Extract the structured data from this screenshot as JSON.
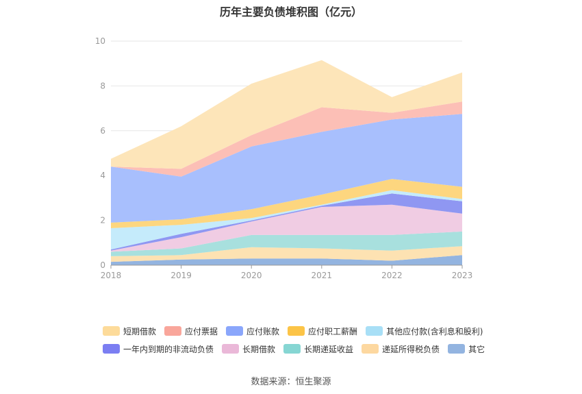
{
  "chart_data": {
    "type": "area",
    "title": "历年主要负债堆积图（亿元）",
    "x": [
      "2018",
      "2019",
      "2020",
      "2021",
      "2022",
      "2023"
    ],
    "ylim": [
      0,
      10
    ],
    "yticks": [
      0,
      2,
      4,
      6,
      8,
      10
    ],
    "grid": true,
    "legend_position": "bottom",
    "series": [
      {
        "name": "其它",
        "color": "#93b4e0",
        "values": [
          0.15,
          0.25,
          0.3,
          0.3,
          0.2,
          0.45
        ]
      },
      {
        "name": "递延所得税负债",
        "color": "#fde2b2",
        "values": [
          0.25,
          0.2,
          0.5,
          0.45,
          0.45,
          0.4
        ]
      },
      {
        "name": "长期递延收益",
        "color": "#a8e0de",
        "values": [
          0.2,
          0.3,
          0.55,
          0.6,
          0.7,
          0.65
        ]
      },
      {
        "name": "长期借款",
        "color": "#f0cce3",
        "values": [
          0.05,
          0.5,
          0.6,
          1.25,
          1.35,
          0.8
        ]
      },
      {
        "name": "一年内到期的非流动负债",
        "color": "#8f97f2",
        "values": [
          0.05,
          0.15,
          0.05,
          0.05,
          0.5,
          0.55
        ]
      },
      {
        "name": "其他应付款(含利息和股利)",
        "color": "#c5ebfb",
        "values": [
          0.95,
          0.4,
          0.1,
          0.05,
          0.15,
          0.1
        ]
      },
      {
        "name": "应付职工薪酬",
        "color": "#fdd67f",
        "values": [
          0.25,
          0.25,
          0.4,
          0.45,
          0.5,
          0.55
        ]
      },
      {
        "name": "应付账款",
        "color": "#a8bffd",
        "values": [
          2.5,
          1.9,
          2.8,
          2.8,
          2.65,
          3.25
        ]
      },
      {
        "name": "应付票据",
        "color": "#fcbfb6",
        "values": [
          0.0,
          0.35,
          0.5,
          1.1,
          0.3,
          0.55
        ]
      },
      {
        "name": "短期借款",
        "color": "#fde5b9",
        "values": [
          0.35,
          1.9,
          2.3,
          2.1,
          0.7,
          1.3
        ]
      }
    ]
  },
  "legend": [
    {
      "label": "短期借款",
      "color": "#fddb9a"
    },
    {
      "label": "应付票据",
      "color": "#f9a69b"
    },
    {
      "label": "应付账款",
      "color": "#8aa6fb"
    },
    {
      "label": "应付职工薪酬",
      "color": "#fcc447"
    },
    {
      "label": "其他应付款(含利息和股利)",
      "color": "#a8dff6"
    },
    {
      "label": "一年内到期的非流动负债",
      "color": "#7b7ef2"
    },
    {
      "label": "长期借款",
      "color": "#eab8d8"
    },
    {
      "label": "长期递延收益",
      "color": "#86d6d3"
    },
    {
      "label": "递延所得税负债",
      "color": "#fdd8a0"
    },
    {
      "label": "其它",
      "color": "#93b4e0"
    }
  ],
  "source": "数据来源：恒生聚源"
}
